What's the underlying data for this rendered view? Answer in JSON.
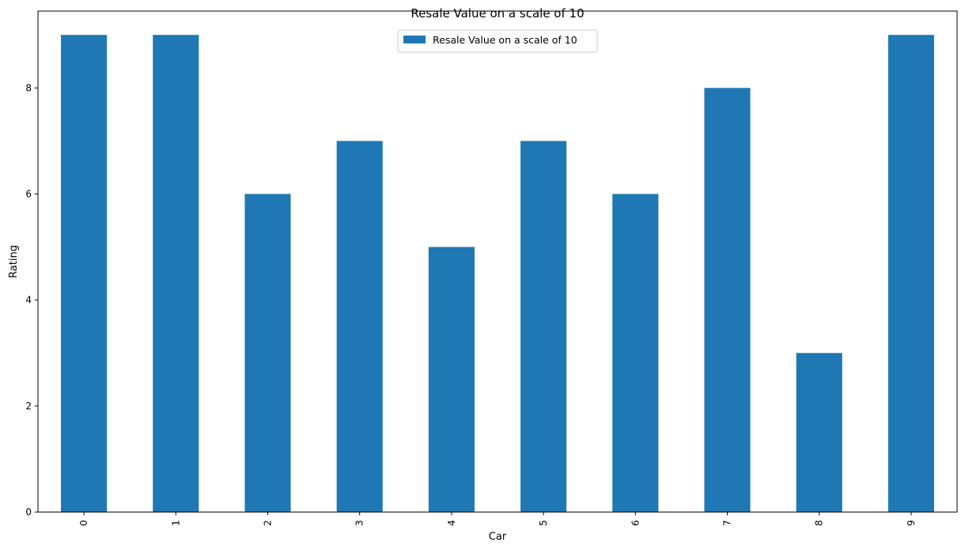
{
  "chart_data": {
    "type": "bar",
    "title": "Resale Value on a scale of 10",
    "xlabel": "Car",
    "ylabel": "Rating",
    "categories": [
      "0",
      "1",
      "2",
      "3",
      "4",
      "5",
      "6",
      "7",
      "8",
      "9"
    ],
    "series": [
      {
        "name": "Resale Value on a scale of 10",
        "values": [
          9,
          9,
          6,
          7,
          5,
          7,
          6,
          8,
          3,
          9
        ],
        "color": "#1f77b4"
      }
    ],
    "ylim": [
      0,
      9.45
    ],
    "yticks": [
      0,
      2,
      4,
      6,
      8
    ],
    "grid": false,
    "legend_position": "upper center",
    "xtick_rotation": "vertical"
  }
}
